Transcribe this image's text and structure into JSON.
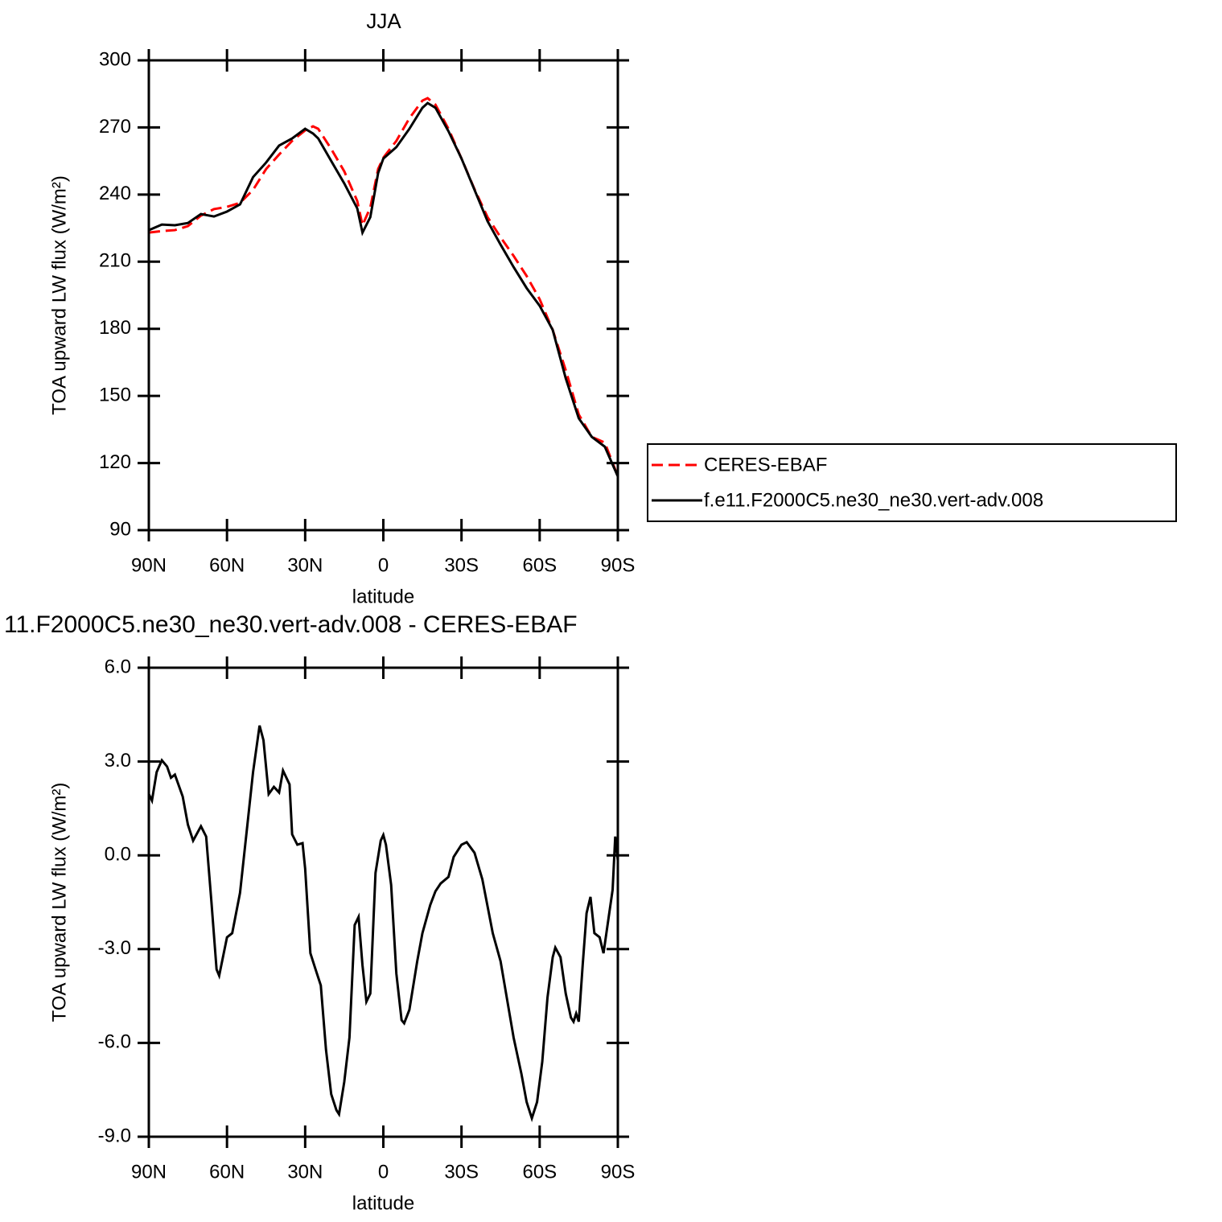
{
  "chart_data": [
    {
      "type": "line",
      "title": "JJA",
      "x_label": "latitude",
      "y_label": "TOA upward LW flux (W/m²)",
      "xlim": [
        90,
        -90
      ],
      "xticks": [
        {
          "value": 90,
          "label": "90N"
        },
        {
          "value": 60,
          "label": "60N"
        },
        {
          "value": 30,
          "label": "30N"
        },
        0,
        {
          "value": -30,
          "label": "30S"
        },
        {
          "value": -60,
          "label": "60S"
        },
        {
          "value": -90,
          "label": "90S"
        }
      ],
      "ylim": [
        90,
        300
      ],
      "yticks": [
        90,
        120,
        150,
        180,
        210,
        240,
        270,
        300
      ],
      "legend": "right",
      "x": [
        90,
        85,
        80,
        75,
        70,
        65,
        60,
        55,
        50,
        45,
        40,
        35,
        30,
        27,
        25,
        20,
        15,
        10,
        8,
        5,
        2,
        0,
        -5,
        -10,
        -15,
        -17,
        -20,
        -25,
        -30,
        -35,
        -40,
        -45,
        -50,
        -55,
        -60,
        -65,
        -70,
        -75,
        -80,
        -85,
        -90
      ],
      "series": [
        {
          "name": "CERES-EBAF",
          "color": "#ff0000",
          "line_style": "dashed",
          "values": [
            223,
            223.7,
            224.1,
            225.9,
            230.6,
            233.5,
            234.5,
            236.3,
            242.1,
            251.4,
            257.9,
            264,
            268.7,
            270.5,
            269.4,
            260.4,
            250.4,
            237.1,
            226.3,
            234.2,
            251.4,
            256.5,
            264,
            274.1,
            282,
            283.1,
            280.2,
            269.4,
            256.1,
            242.4,
            229.9,
            220.9,
            212.6,
            203.6,
            193.2,
            179.5,
            161.5,
            141.7,
            131.7,
            129.1,
            114
          ]
        },
        {
          "name": "f.e11.F2000C5.ne30_ne30.vert-adv.008",
          "color": "#000000",
          "line_style": "solid",
          "values": [
            224.1,
            226.6,
            226.3,
            227.3,
            231.3,
            230.2,
            232.4,
            235.6,
            247.8,
            254.3,
            261.9,
            265.1,
            269.4,
            267.3,
            265.1,
            255,
            245,
            233.8,
            223.0,
            229.9,
            249.6,
            256.1,
            261.2,
            269.4,
            278.8,
            280.9,
            278.8,
            268.3,
            256.1,
            242.1,
            228.1,
            217.6,
            207.6,
            198.2,
            190.3,
            179.5,
            157.9,
            140,
            131.7,
            127.3,
            114
          ]
        }
      ]
    },
    {
      "type": "line",
      "title": "11.F2000C5.ne30_ne30.vert-adv.008 - CERES-EBAF",
      "x_label": "latitude",
      "y_label": "TOA upward LW flux (W/m²)",
      "xlim": [
        90,
        -90
      ],
      "xticks": [
        {
          "value": 90,
          "label": "90N"
        },
        {
          "value": 60,
          "label": "60N"
        },
        {
          "value": 30,
          "label": "30N"
        },
        0,
        {
          "value": -30,
          "label": "30S"
        },
        {
          "value": -60,
          "label": "60S"
        },
        {
          "value": -90,
          "label": "90S"
        }
      ],
      "ylim": [
        -9,
        6
      ],
      "yticks": [
        {
          "value": -9,
          "label": "-9.0"
        },
        {
          "value": -6,
          "label": "-6.0"
        },
        {
          "value": -3,
          "label": "-3.0"
        },
        {
          "value": 0,
          "label": "0.0"
        },
        {
          "value": 3,
          "label": "3.0"
        },
        {
          "value": 6,
          "label": "6.0"
        }
      ],
      "color": "#000000",
      "x": [
        90,
        88.8,
        87,
        85,
        83,
        81.5,
        80,
        77,
        75,
        73,
        70,
        68,
        66,
        64,
        63,
        60,
        58,
        55,
        52,
        50,
        47.5,
        46,
        44,
        42,
        40,
        38.5,
        36,
        35,
        33,
        31,
        30,
        28,
        26,
        24,
        22,
        20,
        18,
        17,
        15,
        13,
        11,
        9.5,
        8,
        6.5,
        5,
        3,
        1,
        0,
        -1,
        -3,
        -5,
        -7,
        -8,
        -10,
        -13,
        -15,
        -18,
        -20,
        -22,
        -25,
        -27,
        -30,
        -32,
        -35,
        -38,
        -42,
        -45,
        -50,
        -53,
        -55,
        -57,
        -59,
        -61,
        -63,
        -65,
        -66,
        -68,
        -70,
        -72,
        -73,
        -74,
        -75,
        -76.5,
        -78,
        -79.5,
        -81,
        -83,
        -84.5,
        -86.5,
        -88,
        -89,
        -90
      ],
      "values": [
        1.96,
        1.75,
        2.66,
        3.04,
        2.84,
        2.48,
        2.58,
        1.88,
        0.98,
        0.47,
        0.93,
        0.6,
        -1.46,
        -3.65,
        -3.85,
        -2.62,
        -2.49,
        -1.2,
        1.11,
        2.66,
        4.15,
        3.68,
        1.96,
        2.19,
        2.01,
        2.71,
        2.27,
        0.67,
        0.34,
        0.39,
        -0.43,
        -3.13,
        -3.65,
        -4.16,
        -6.22,
        -7.64,
        -8.15,
        -8.28,
        -7.25,
        -5.83,
        -2.23,
        -1.97,
        -3.52,
        -4.68,
        -4.42,
        -0.56,
        0.47,
        0.65,
        0.34,
        -0.95,
        -3.78,
        -5.27,
        -5.37,
        -4.94,
        -3.39,
        -2.49,
        -1.59,
        -1.15,
        -0.9,
        -0.69,
        -0.05,
        0.34,
        0.42,
        0.08,
        -0.77,
        -2.49,
        -3.39,
        -5.83,
        -6.99,
        -7.89,
        -8.41,
        -7.89,
        -6.6,
        -4.55,
        -3.26,
        -2.95,
        -3.26,
        -4.42,
        -5.19,
        -5.32,
        -5.06,
        -5.32,
        -3.52,
        -1.85,
        -1.33,
        -2.49,
        -2.62,
        -3.13,
        -1.97,
        -1.1,
        0.6,
        -0.17
      ]
    }
  ]
}
